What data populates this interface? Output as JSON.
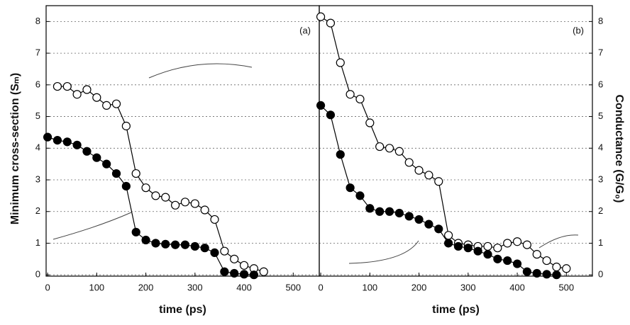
{
  "chart_data": [
    {
      "type": "line",
      "panel_label": "(a)",
      "xlabel": "time (ps)",
      "ylabel": "Minimum cross-section (Sₘ)",
      "xlim": [
        -3,
        553
      ],
      "xticks": [
        0,
        100,
        200,
        300,
        400,
        500
      ],
      "ylim": [
        -0.04,
        8.5
      ],
      "yticks": [
        0,
        1,
        2,
        3,
        4,
        5,
        6,
        7,
        8
      ],
      "grid": true,
      "series": [
        {
          "color": "#000000",
          "marker_fill": "#ffffff",
          "x": [
            20,
            40,
            60,
            80,
            100,
            120,
            140,
            160,
            180,
            200,
            220,
            240,
            260,
            280,
            300,
            320,
            340,
            360,
            380,
            400,
            420,
            440
          ],
          "values": [
            5.95,
            5.95,
            5.7,
            5.85,
            5.6,
            5.35,
            5.4,
            4.7,
            3.2,
            2.75,
            2.5,
            2.45,
            2.2,
            2.3,
            2.25,
            2.05,
            1.75,
            0.75,
            0.5,
            0.3,
            0.2,
            0.1
          ]
        },
        {
          "color": "#000000",
          "marker_fill": "#000000",
          "x": [
            0,
            20,
            40,
            60,
            80,
            100,
            120,
            140,
            160,
            180,
            200,
            220,
            240,
            260,
            280,
            300,
            320,
            340,
            360,
            380,
            400,
            420
          ],
          "values": [
            4.35,
            4.25,
            4.2,
            4.1,
            3.9,
            3.7,
            3.5,
            3.2,
            2.8,
            1.35,
            1.1,
            1.0,
            0.97,
            0.95,
            0.95,
            0.9,
            0.85,
            0.7,
            0.1,
            0.05,
            0.02,
            0.0
          ]
        }
      ]
    },
    {
      "type": "line",
      "panel_label": "(b)",
      "xlabel": "time (ps)",
      "y2label": "Conductance (G/G₀)",
      "xlim": [
        -3,
        553
      ],
      "xticks": [
        0,
        100,
        200,
        300,
        400,
        500
      ],
      "ylim": [
        -0.04,
        8.5
      ],
      "y2lim": [
        -0.04,
        8.5
      ],
      "y2ticks": [
        0,
        1,
        2,
        3,
        4,
        5,
        6,
        7,
        8
      ],
      "grid": true,
      "series": [
        {
          "color": "#000000",
          "marker_fill": "#ffffff",
          "x": [
            0,
            20,
            40,
            60,
            80,
            100,
            120,
            140,
            160,
            180,
            200,
            220,
            240,
            260,
            280,
            300,
            320,
            340,
            360,
            380,
            400,
            420,
            440,
            460,
            480,
            500
          ],
          "values": [
            8.15,
            7.95,
            6.7,
            5.7,
            5.55,
            4.8,
            4.05,
            4.0,
            3.9,
            3.55,
            3.3,
            3.15,
            2.95,
            1.25,
            1.0,
            0.95,
            0.9,
            0.9,
            0.85,
            1.0,
            1.05,
            0.95,
            0.65,
            0.45,
            0.25,
            0.2
          ]
        },
        {
          "color": "#000000",
          "marker_fill": "#000000",
          "x": [
            0,
            20,
            40,
            60,
            80,
            100,
            120,
            140,
            160,
            180,
            200,
            220,
            240,
            260,
            280,
            300,
            320,
            340,
            360,
            380,
            400,
            420,
            440,
            460,
            480
          ],
          "values": [
            5.35,
            5.05,
            3.8,
            2.75,
            2.5,
            2.1,
            2.0,
            2.0,
            1.95,
            1.85,
            1.75,
            1.6,
            1.45,
            1.0,
            0.9,
            0.85,
            0.75,
            0.65,
            0.5,
            0.45,
            0.35,
            0.1,
            0.05,
            0.02,
            0.0
          ]
        }
      ]
    }
  ]
}
